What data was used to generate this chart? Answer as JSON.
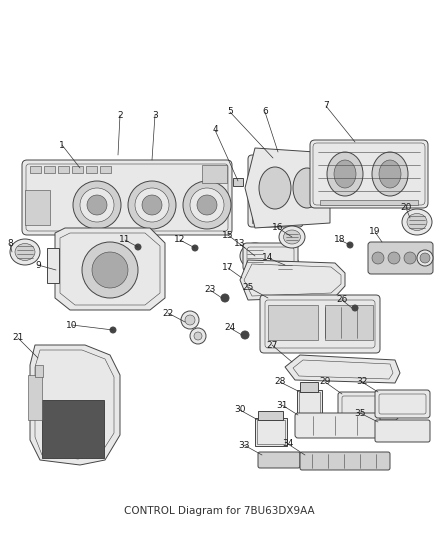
{
  "title": "CONTROL Diagram for 7BU63DX9AA",
  "bg_color": "#ffffff",
  "fig_width": 4.38,
  "fig_height": 5.33,
  "dpi": 100,
  "label_fontsize": 6.5,
  "label_color": "#1a1a1a",
  "ec": "#444444",
  "fc_light": "#e8e8e8",
  "fc_mid": "#d0d0d0",
  "fc_dark": "#aaaaaa",
  "fc_vdark": "#555555",
  "lw_main": 0.7,
  "lw_thin": 0.4
}
